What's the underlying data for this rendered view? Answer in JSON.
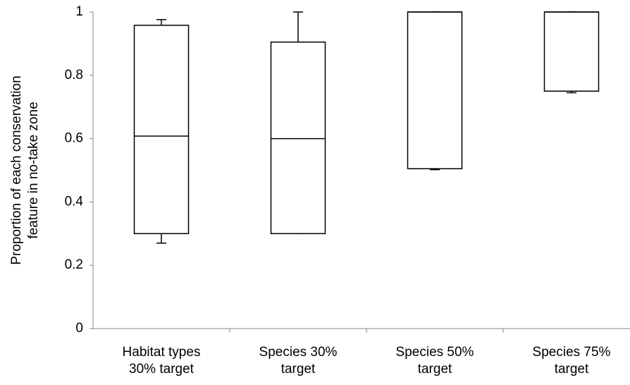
{
  "chart_data": {
    "type": "box",
    "ylabel": [
      "Proportion of each conservation",
      "feature in no-take zone"
    ],
    "categories": [
      [
        "Habitat types",
        "30% target"
      ],
      [
        "Species 30%",
        "target"
      ],
      [
        "Species 50%",
        "target"
      ],
      [
        "Species 75%",
        "target"
      ]
    ],
    "series": [
      {
        "name": null,
        "color": "#000000",
        "values": [
          {
            "min": 0.27,
            "q1": 0.3,
            "median": 0.608,
            "q3": 0.958,
            "max": 0.976
          },
          {
            "min": 0.3,
            "q1": 0.3,
            "median": 0.6,
            "q3": 0.905,
            "max": 1
          },
          {
            "min": 0.502,
            "q1": 0.505,
            "median": 1,
            "q3": 1,
            "max": 1
          },
          {
            "min": 0.745,
            "q1": 0.75,
            "median": 1,
            "q3": 1,
            "max": 1
          }
        ]
      }
    ],
    "ylim": [
      0,
      1
    ],
    "yticks": [
      0,
      0.2,
      0.4,
      0.6,
      0.8,
      1
    ],
    "grid": false
  }
}
